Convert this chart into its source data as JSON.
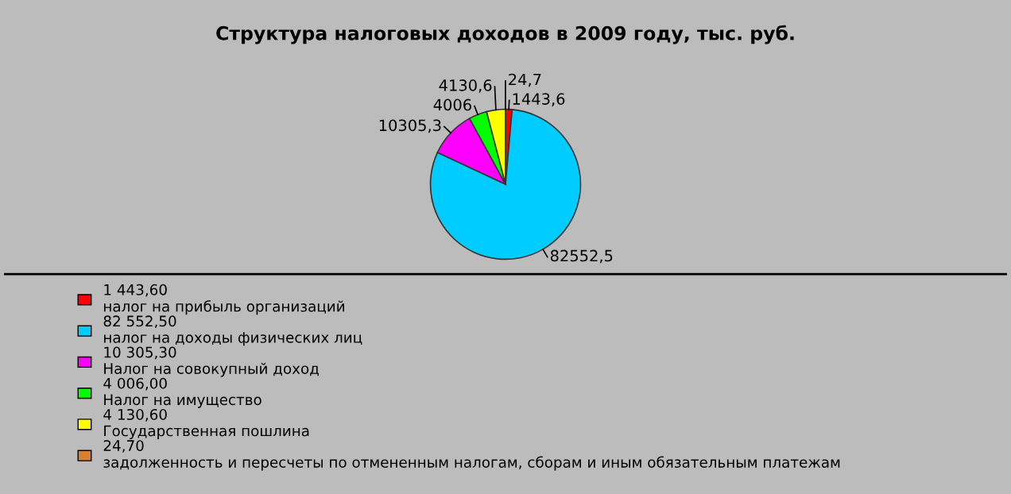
{
  "chart_data": {
    "type": "pie",
    "title": "Структура налоговых доходов в 2009 году, тыс. руб.",
    "categories": [
      "1 443,60\nналог на прибыль организаций",
      "82 552,50\nналог на доходы физических лиц",
      "10 305,30\nНалог на совокупный доход",
      "4 006,00\nНалог на имущество",
      "4 130,60\nГосударственная пошлина",
      "24,70\nзадолженность и пересчеты по отмененным налогам, сборам и иным обязательным платежам"
    ],
    "values": [
      1443.6,
      82552.5,
      10305.3,
      4006,
      4130.6,
      24.7
    ],
    "value_labels": [
      "1443,6",
      "82552,5",
      "10305,3",
      "4006",
      "4130,6",
      "24,7"
    ],
    "colors": [
      "#ff0000",
      "#00ccff",
      "#ff00ff",
      "#00ff00",
      "#ffff00",
      "#d98030"
    ],
    "legend": "bottom"
  }
}
